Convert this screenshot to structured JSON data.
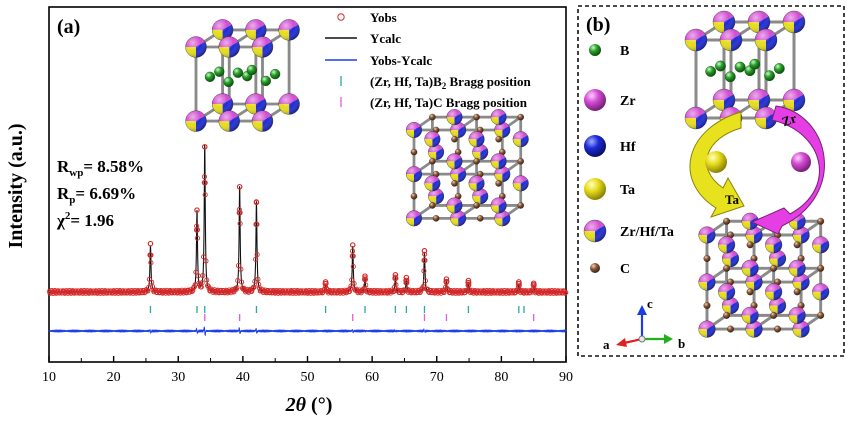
{
  "panel_a": {
    "label": "(a)",
    "ylabel": "Intensity (a.u.)",
    "xlabel_symbol": "2θ",
    "xlabel_unit": "(°)",
    "stats": [
      {
        "sym": "R",
        "sub": "wp",
        "text": "= 8.58%"
      },
      {
        "sym": "R",
        "sub": "p",
        "text": "= 6.69%"
      },
      {
        "sym": "χ",
        "sup": "2",
        "text": "= 1.96"
      }
    ],
    "legend": {
      "yobs": "Yobs",
      "ycalc": "Ycalc",
      "diff": "Yobs-Ycalc",
      "bragg1_pre": "(Zr, Hf, Ta)B",
      "bragg1_sub": "2",
      "bragg1_post": " Bragg position",
      "bragg2": "(Zr, Hf, Ta)C Bragg position"
    }
  },
  "panel_b": {
    "label": "(b)",
    "atoms": [
      {
        "name": "B",
        "key": "B"
      },
      {
        "name": "Zr",
        "key": "Zr"
      },
      {
        "name": "Hf",
        "key": "Hf"
      },
      {
        "name": "Ta",
        "key": "Ta"
      },
      {
        "name": "Zr/Hf/Ta",
        "key": "mix"
      },
      {
        "name": "C",
        "key": "C"
      }
    ],
    "arrow_labels": {
      "top": "Zr",
      "bottom": "Ta"
    },
    "axes": {
      "c": "c",
      "a": "a",
      "b": "b"
    }
  },
  "colors": {
    "yobs": "#d42a2a",
    "ycalc": "#111111",
    "diff": "#1f3fe6",
    "bragg1": "#2aa8a0",
    "bragg2": "#e05ce0",
    "zr": "#d24bd2",
    "hf": "#1c2ad6",
    "ta": "#e6dc1a",
    "b": "#2aa02a",
    "c": "#8b5a3c"
  },
  "chart_data": {
    "type": "line",
    "xlabel": "2θ (°)",
    "ylabel": "Intensity (a.u.)",
    "xlim": [
      10,
      90
    ],
    "xticks": [
      10,
      20,
      30,
      40,
      50,
      60,
      70,
      80,
      90
    ],
    "y_tick_labels": false,
    "peaks": [
      {
        "x": 25.7,
        "y": 32
      },
      {
        "x": 32.9,
        "y": 55
      },
      {
        "x": 34.1,
        "y": 100
      },
      {
        "x": 39.5,
        "y": 72
      },
      {
        "x": 42.1,
        "y": 61
      },
      {
        "x": 52.8,
        "y": 5
      },
      {
        "x": 57.0,
        "y": 31
      },
      {
        "x": 58.9,
        "y": 9
      },
      {
        "x": 63.6,
        "y": 10
      },
      {
        "x": 65.3,
        "y": 8
      },
      {
        "x": 68.1,
        "y": 27
      },
      {
        "x": 71.5,
        "y": 7
      },
      {
        "x": 74.9,
        "y": 6
      },
      {
        "x": 82.7,
        "y": 5
      },
      {
        "x": 85.0,
        "y": 4
      }
    ],
    "bragg_B2": [
      25.7,
      32.9,
      34.1,
      42.1,
      52.8,
      58.9,
      63.6,
      65.3,
      68.1,
      74.9,
      82.7,
      83.5
    ],
    "bragg_C": [
      34.1,
      39.5,
      57.0,
      68.1,
      71.5,
      85.0
    ],
    "series": [
      {
        "name": "Yobs",
        "style": "open circles"
      },
      {
        "name": "Ycalc",
        "style": "line"
      },
      {
        "name": "Yobs-Ycalc",
        "style": "line"
      },
      {
        "name": "(Zr, Hf, Ta)B2 Bragg position",
        "style": "ticks"
      },
      {
        "name": "(Zr, Hf, Ta)C Bragg position",
        "style": "ticks"
      }
    ]
  }
}
